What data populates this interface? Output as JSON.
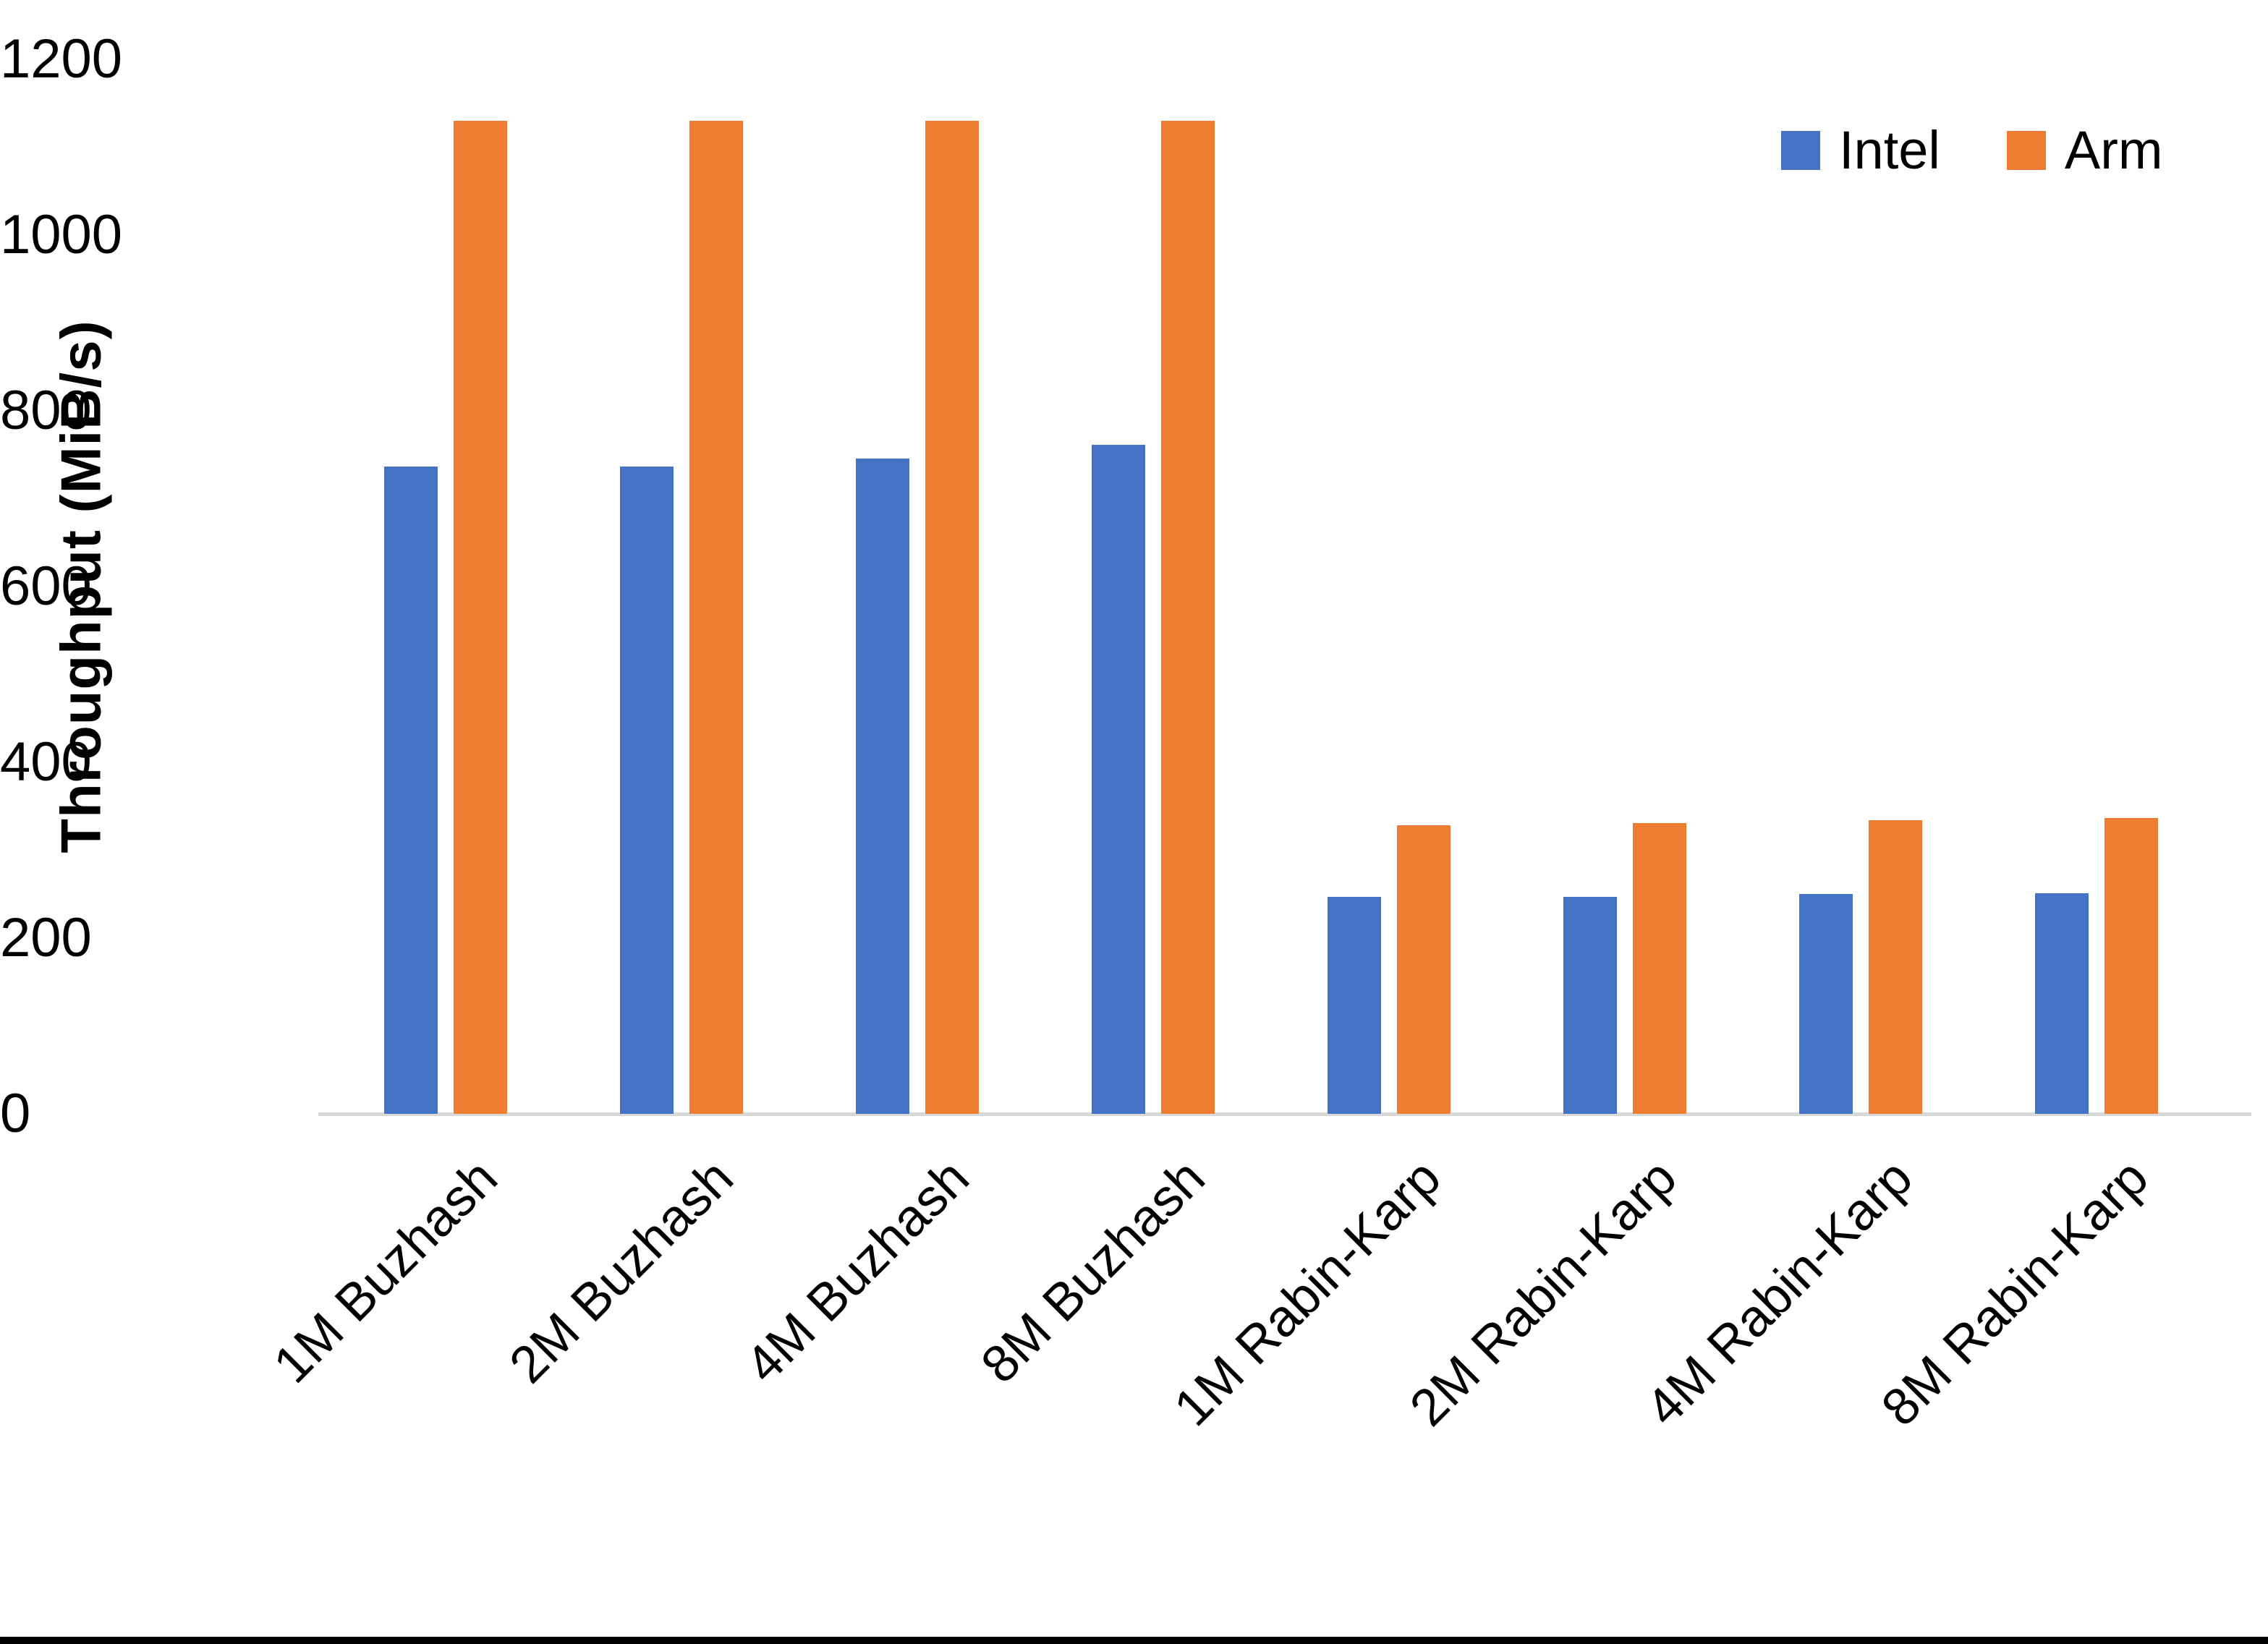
{
  "chart_data": {
    "type": "bar",
    "title": "",
    "xlabel": "",
    "ylabel": "Throughput (MiB/s)",
    "ylim": [
      0,
      1200
    ],
    "yticks": [
      1200,
      1000,
      800,
      600,
      400,
      200,
      0
    ],
    "grid": "none",
    "legend_position": "top-right",
    "categories": [
      "1M Buzhash",
      "2M Buzhash",
      "4M Buzhash",
      "8M Buzhash",
      "1M Rabin-Karp",
      "2M Rabin-Karp",
      "4M Rabin-Karp",
      "8M Rabin-Karp"
    ],
    "series": [
      {
        "name": "Intel",
        "color": "#4472C4",
        "values": [
          737,
          737,
          746,
          761,
          247,
          247,
          250,
          251
        ]
      },
      {
        "name": "Arm",
        "color": "#ED7D31",
        "values": [
          1130,
          1130,
          1130,
          1130,
          328,
          331,
          334,
          337
        ]
      }
    ]
  },
  "colors": {
    "background": "#FFFFFF",
    "text": "#000000",
    "axis_line": "#D9D9D9",
    "intel": "#4472C4",
    "arm": "#ED7D31",
    "bottom_bar": "#000000"
  }
}
